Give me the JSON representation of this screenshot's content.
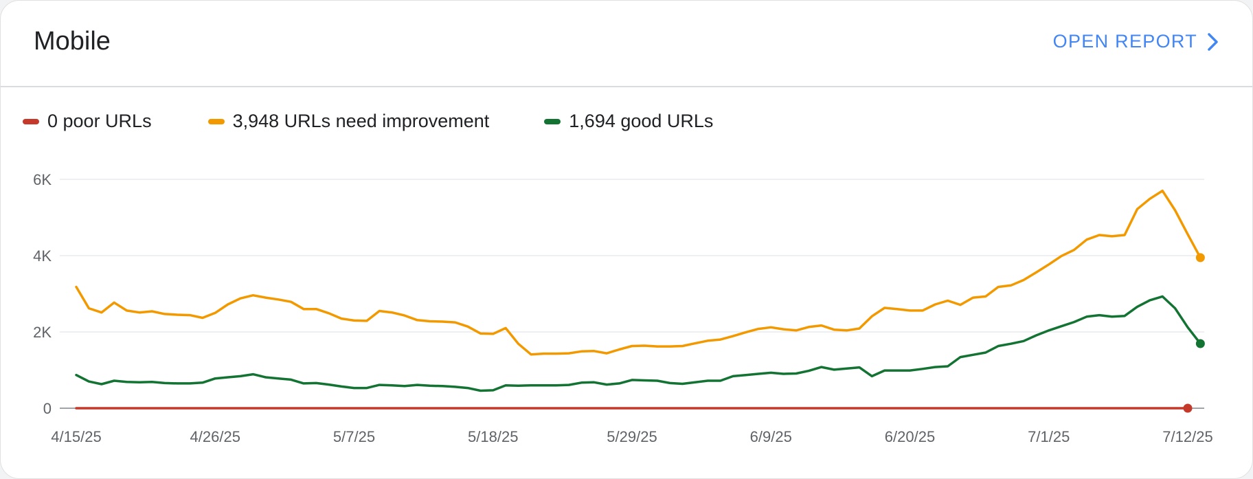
{
  "header": {
    "title": "Mobile",
    "open_report_label": "OPEN REPORT"
  },
  "legend": [
    {
      "label": "0 poor URLs",
      "color": "#c5392a"
    },
    {
      "label": "3,948 URLs need improvement",
      "color": "#f29900"
    },
    {
      "label": "1,694 good URLs",
      "color": "#137333"
    }
  ],
  "chart_data": {
    "type": "line",
    "ylim": [
      0,
      6000
    ],
    "y_ticks": [
      {
        "value": 0,
        "label": "0"
      },
      {
        "value": 2000,
        "label": "2K"
      },
      {
        "value": 4000,
        "label": "4K"
      },
      {
        "value": 6000,
        "label": "6K"
      }
    ],
    "x_ticks": [
      {
        "index": 0,
        "label": "4/15/25"
      },
      {
        "index": 11,
        "label": "4/26/25"
      },
      {
        "index": 22,
        "label": "5/7/25"
      },
      {
        "index": 33,
        "label": "5/18/25"
      },
      {
        "index": 44,
        "label": "5/29/25"
      },
      {
        "index": 55,
        "label": "6/9/25"
      },
      {
        "index": 66,
        "label": "6/20/25"
      },
      {
        "index": 77,
        "label": "7/1/25"
      },
      {
        "index": 88,
        "label": "7/12/25"
      }
    ],
    "grid": true,
    "series": [
      {
        "name": "0 poor URLs",
        "color": "#c5392a",
        "values": [
          0,
          0,
          0,
          0,
          0,
          0,
          0,
          0,
          0,
          0,
          0,
          0,
          0,
          0,
          0,
          0,
          0,
          0,
          0,
          0,
          0,
          0,
          0,
          0,
          0,
          0,
          0,
          0,
          0,
          0,
          0,
          0,
          0,
          0,
          0,
          0,
          0,
          0,
          0,
          0,
          0,
          0,
          0,
          0,
          0,
          0,
          0,
          0,
          0,
          0,
          0,
          0,
          0,
          0,
          0,
          0,
          0,
          0,
          0,
          0,
          0,
          0,
          0,
          0,
          0,
          0,
          0,
          0,
          0,
          0,
          0,
          0,
          0,
          0,
          0,
          0,
          0,
          0,
          0,
          0,
          0,
          0,
          0,
          0,
          0,
          0,
          0,
          0,
          0
        ]
      },
      {
        "name": "3,948 URLs need improvement",
        "color": "#f29900",
        "values": [
          3180,
          2620,
          2510,
          2770,
          2560,
          2510,
          2540,
          2470,
          2450,
          2440,
          2370,
          2500,
          2720,
          2880,
          2960,
          2900,
          2850,
          2790,
          2600,
          2600,
          2490,
          2350,
          2300,
          2290,
          2550,
          2510,
          2430,
          2310,
          2280,
          2270,
          2250,
          2140,
          1960,
          1950,
          2100,
          1690,
          1410,
          1430,
          1430,
          1440,
          1490,
          1500,
          1440,
          1540,
          1630,
          1640,
          1620,
          1620,
          1630,
          1700,
          1770,
          1800,
          1890,
          1990,
          2080,
          2120,
          2070,
          2040,
          2130,
          2170,
          2060,
          2040,
          2090,
          2410,
          2630,
          2600,
          2560,
          2560,
          2720,
          2820,
          2710,
          2900,
          2930,
          3180,
          3220,
          3360,
          3560,
          3770,
          3990,
          4150,
          4420,
          4540,
          4510,
          4540,
          5220,
          5490,
          5700,
          5190,
          4560,
          3948
        ]
      },
      {
        "name": "1,694 good URLs",
        "color": "#137333",
        "values": [
          870,
          700,
          630,
          720,
          690,
          680,
          690,
          660,
          650,
          650,
          670,
          780,
          810,
          840,
          890,
          810,
          780,
          750,
          650,
          660,
          620,
          570,
          530,
          530,
          610,
          600,
          580,
          610,
          590,
          580,
          560,
          530,
          460,
          470,
          600,
          590,
          600,
          600,
          600,
          610,
          670,
          680,
          620,
          650,
          740,
          730,
          720,
          660,
          640,
          680,
          720,
          720,
          840,
          870,
          900,
          930,
          900,
          910,
          980,
          1080,
          1010,
          1040,
          1070,
          840,
          990,
          990,
          990,
          1030,
          1080,
          1100,
          1340,
          1400,
          1460,
          1630,
          1690,
          1760,
          1910,
          2040,
          2150,
          2260,
          2400,
          2440,
          2400,
          2420,
          2660,
          2830,
          2930,
          2620,
          2120,
          1694
        ]
      }
    ]
  }
}
